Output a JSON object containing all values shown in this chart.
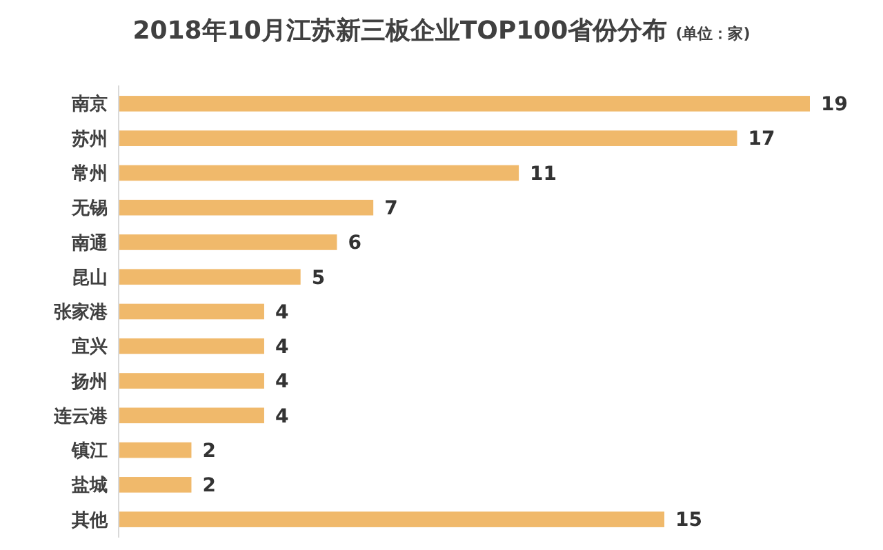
{
  "chart_data": {
    "type": "bar",
    "orientation": "horizontal",
    "title": "2018年10月江苏新三板企业TOP100省份分布",
    "subtitle": "(单位：家)",
    "categories": [
      "南京",
      "苏州",
      "常州",
      "无锡",
      "南通",
      "昆山",
      "张家港",
      "宜兴",
      "扬州",
      "连云港",
      "镇江",
      "盐城",
      "其他"
    ],
    "values": [
      19,
      17,
      11,
      7,
      6,
      5,
      4,
      4,
      4,
      4,
      2,
      2,
      15
    ],
    "color": "#f0b96b",
    "data_labels": true
  }
}
